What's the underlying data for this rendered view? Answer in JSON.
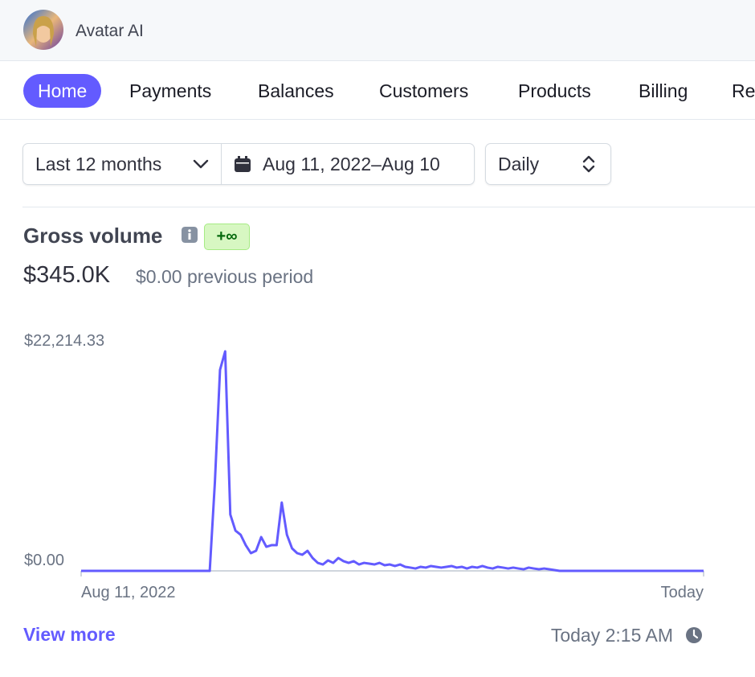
{
  "header": {
    "org_name": "Avatar AI"
  },
  "nav": {
    "items": [
      "Home",
      "Payments",
      "Balances",
      "Customers",
      "Products",
      "Billing",
      "Reports"
    ]
  },
  "filters": {
    "range": "Last 12 months",
    "dates": "Aug 11, 2022–Aug 10",
    "interval": "Daily"
  },
  "chart_data": {
    "type": "line",
    "title": "Gross volume",
    "badge": "+∞",
    "total": "$345.0K",
    "comparison": "$0.00 previous period",
    "color": "#635bff",
    "categories": [
      "Aug 11, 2022",
      null,
      null,
      null,
      null,
      null,
      null,
      null,
      null,
      null,
      null,
      null,
      null,
      null,
      null,
      null,
      null,
      null,
      null,
      null,
      null,
      null,
      null,
      null,
      null,
      null,
      null,
      null,
      null,
      null,
      null,
      null,
      null,
      null,
      null,
      null,
      null,
      null,
      null,
      null,
      null,
      null,
      null,
      null,
      null,
      null,
      null,
      null,
      null,
      null,
      null,
      null,
      null,
      null,
      null,
      null,
      null,
      null,
      null,
      null,
      null,
      null,
      null,
      null,
      null,
      null,
      null,
      null,
      null,
      null,
      null,
      null,
      null,
      null,
      null,
      null,
      null,
      null,
      null,
      null,
      null,
      null,
      null,
      null,
      null,
      null,
      null,
      null,
      null,
      null,
      null,
      null,
      null,
      null,
      null,
      null,
      null,
      null,
      null,
      null,
      null,
      null,
      null,
      null,
      null,
      null,
      null,
      null,
      null,
      null,
      null,
      null,
      null,
      null,
      null,
      null,
      null,
      null,
      null,
      null,
      null,
      "Today"
    ],
    "values": [
      0,
      0,
      0,
      0,
      0,
      0,
      0,
      0,
      0,
      0,
      0,
      0,
      0,
      0,
      0,
      0,
      0,
      0,
      0,
      0,
      0,
      0,
      0,
      0,
      0,
      0,
      8950,
      20340,
      22214.33,
      5700,
      4070,
      3660,
      2600,
      1790,
      2030,
      3420,
      2440,
      2600,
      2600,
      6920,
      3660,
      2280,
      1790,
      1630,
      2030,
      1300,
      810,
      650,
      1060,
      810,
      1300,
      980,
      810,
      980,
      650,
      810,
      730,
      650,
      810,
      570,
      650,
      490,
      650,
      410,
      330,
      240,
      410,
      330,
      490,
      410,
      330,
      410,
      490,
      330,
      410,
      240,
      410,
      330,
      490,
      330,
      240,
      410,
      330,
      240,
      330,
      240,
      160,
      330,
      240,
      160,
      240,
      160,
      80,
      0,
      0,
      0,
      0,
      0,
      0,
      0,
      0,
      0,
      0,
      0,
      0,
      0,
      0,
      0,
      0,
      0,
      0,
      0,
      0,
      0,
      0,
      0,
      0,
      0,
      0,
      0,
      0,
      0
    ],
    "ylim": [
      0,
      22214.33
    ],
    "yticks": [
      {
        "value": 0,
        "label": "$0.00"
      },
      {
        "value": 22214.33,
        "label": "$22,214.33"
      }
    ]
  },
  "footer": {
    "link": "View more",
    "updated": "Today 2:15 AM"
  }
}
